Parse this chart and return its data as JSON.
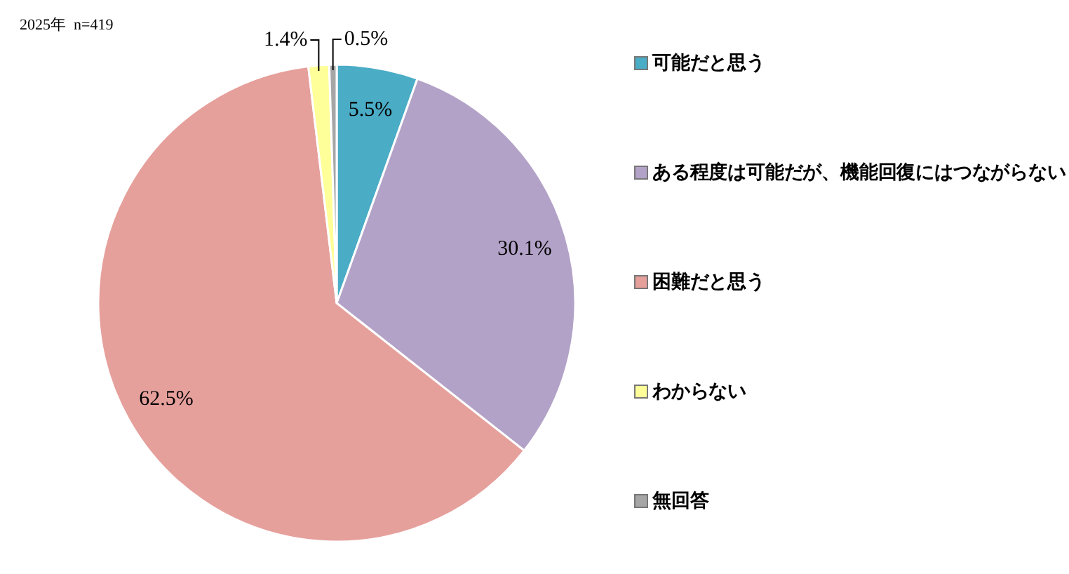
{
  "chart_data": {
    "type": "pie",
    "title": "2025年  n=419",
    "categories": [
      "可能だと思う",
      "ある程度は可能だが、機能回復にはつながらない",
      "困難だと思う",
      "わからない",
      "無回答"
    ],
    "values": [
      5.5,
      30.1,
      62.5,
      1.4,
      0.5
    ],
    "value_labels": [
      "5.5%",
      "30.1%",
      "62.5%",
      "1.4%",
      "0.5%"
    ],
    "colors": [
      "#4bacc6",
      "#b3a2c7",
      "#e6a09c",
      "#ffff99",
      "#a6a6a6"
    ],
    "legend": "right"
  }
}
